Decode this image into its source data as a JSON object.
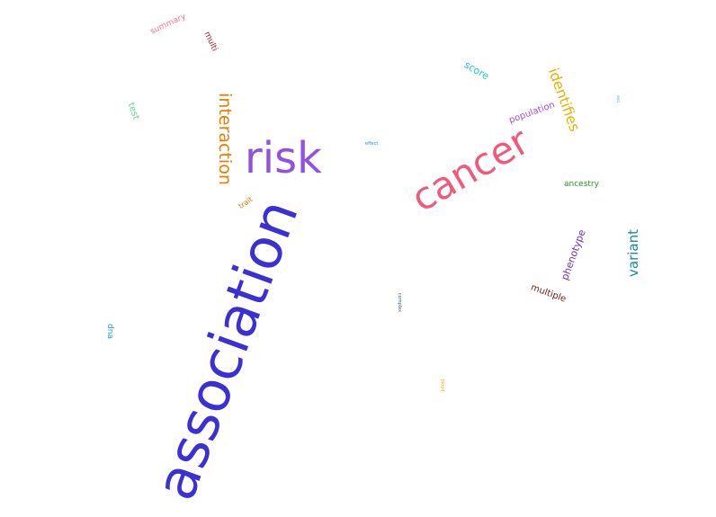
{
  "words": [
    {
      "text": "association",
      "color": "#3b2fd6"
    },
    {
      "text": "cancer",
      "color": "#f05a7a"
    },
    {
      "text": "risk",
      "color": "#9152de"
    },
    {
      "text": "interaction",
      "color": "#f07c00"
    },
    {
      "text": "identifies",
      "color": "#e8b000"
    },
    {
      "text": "variant",
      "color": "#1a8a9e"
    },
    {
      "text": "phenotype",
      "color": "#6a2fd0"
    },
    {
      "text": "score",
      "color": "#22c4d8"
    },
    {
      "text": "population",
      "color": "#a24ce0"
    },
    {
      "text": "multiple",
      "color": "#7a1a1a"
    },
    {
      "text": "ancestry",
      "color": "#1f9a1f"
    },
    {
      "text": "test",
      "color": "#5ed88a"
    },
    {
      "text": "summary",
      "color": "#f2758f"
    },
    {
      "text": "multi",
      "color": "#a82020"
    },
    {
      "text": "trait",
      "color": "#e07800"
    },
    {
      "text": "dna",
      "color": "#22a0e0"
    },
    {
      "text": "effect",
      "color": "#2a8ad8"
    },
    {
      "text": "complex",
      "color": "#2a5a9a"
    },
    {
      "text": "blood",
      "color": "#e8b000"
    },
    {
      "text": "end",
      "color": "#22b0d8"
    }
  ]
}
